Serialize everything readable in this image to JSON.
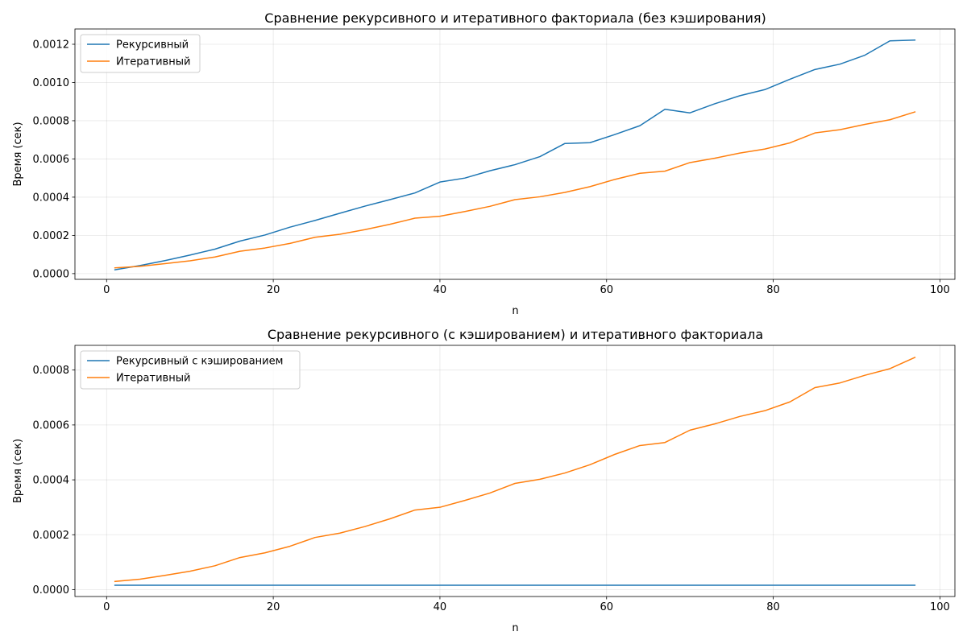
{
  "colors": {
    "series1": "#1f77b4",
    "series2": "#ff7f0e",
    "grid": "#b0b0b0",
    "axis": "#000000"
  },
  "chart_data": [
    {
      "type": "line",
      "title": "Сравнение рекурсивного и итеративного факториала (без кэширования)",
      "xlabel": "n",
      "ylabel": "Время (сек)",
      "xlim": [
        -3.8,
        101.8
      ],
      "ylim": [
        -3e-05,
        0.00128
      ],
      "xticks": [
        0,
        20,
        40,
        60,
        80,
        100
      ],
      "xtick_labels": [
        "0",
        "20",
        "40",
        "60",
        "80",
        "100"
      ],
      "yticks": [
        0.0,
        0.0002,
        0.0004,
        0.0006,
        0.0008,
        0.001,
        0.0012
      ],
      "ytick_labels": [
        "0.0000",
        "0.0002",
        "0.0004",
        "0.0006",
        "0.0008",
        "0.0010",
        "0.0012"
      ],
      "grid": true,
      "legend_position": "top-left",
      "x": [
        1,
        4,
        7,
        10,
        13,
        16,
        19,
        22,
        25,
        28,
        31,
        34,
        37,
        40,
        43,
        46,
        49,
        52,
        55,
        58,
        61,
        64,
        67,
        70,
        73,
        76,
        79,
        82,
        85,
        88,
        91,
        94,
        97
      ],
      "series": [
        {
          "name": "Рекурсивный",
          "color": "#1f77b4",
          "values": [
            2e-05,
            4.2e-05,
            6.8e-05,
            9.7e-05,
            0.000128,
            0.00017,
            0.000202,
            0.000243,
            0.000278,
            0.000316,
            0.000353,
            0.000387,
            0.000422,
            0.000479,
            0.0005,
            0.000538,
            0.00057,
            0.000612,
            0.000681,
            0.000685,
            0.000728,
            0.000774,
            0.00086,
            0.000841,
            0.000889,
            0.000931,
            0.000963,
            0.001017,
            0.001068,
            0.001096,
            0.001143,
            0.001218,
            0.001222
          ]
        },
        {
          "name": "Итеративный",
          "color": "#ff7f0e",
          "values": [
            3e-05,
            3.8e-05,
            5.2e-05,
            6.7e-05,
            8.7e-05,
            0.000117,
            0.000134,
            0.000158,
            0.00019,
            0.000206,
            0.00023,
            0.000258,
            0.00029,
            0.0003,
            0.000325,
            0.000352,
            0.000387,
            0.000402,
            0.000425,
            0.000455,
            0.000493,
            0.000525,
            0.000536,
            0.000581,
            0.000604,
            0.000631,
            0.000652,
            0.000684,
            0.000736,
            0.000753,
            0.000781,
            0.000805,
            0.000846
          ]
        }
      ]
    },
    {
      "type": "line",
      "title": "Сравнение рекурсивного (с кэшированием) и итеративного факториала",
      "xlabel": "n",
      "ylabel": "Время (сек)",
      "xlim": [
        -3.8,
        101.8
      ],
      "ylim": [
        -2.5e-05,
        0.00089
      ],
      "xticks": [
        0,
        20,
        40,
        60,
        80,
        100
      ],
      "xtick_labels": [
        "0",
        "20",
        "40",
        "60",
        "80",
        "100"
      ],
      "yticks": [
        0.0,
        0.0002,
        0.0004,
        0.0006,
        0.0008
      ],
      "ytick_labels": [
        "0.0000",
        "0.0002",
        "0.0004",
        "0.0006",
        "0.0008"
      ],
      "grid": true,
      "legend_position": "top-left",
      "x": [
        1,
        4,
        7,
        10,
        13,
        16,
        19,
        22,
        25,
        28,
        31,
        34,
        37,
        40,
        43,
        46,
        49,
        52,
        55,
        58,
        61,
        64,
        67,
        70,
        73,
        76,
        79,
        82,
        85,
        88,
        91,
        94,
        97
      ],
      "series": [
        {
          "name": "Рекурсивный с кэшированием",
          "color": "#1f77b4",
          "values": [
            1.6e-05,
            1.6e-05,
            1.6e-05,
            1.6e-05,
            1.6e-05,
            1.6e-05,
            1.6e-05,
            1.6e-05,
            1.6e-05,
            1.6e-05,
            1.6e-05,
            1.6e-05,
            1.6e-05,
            1.6e-05,
            1.6e-05,
            1.6e-05,
            1.6e-05,
            1.6e-05,
            1.6e-05,
            1.6e-05,
            1.6e-05,
            1.6e-05,
            1.6e-05,
            1.6e-05,
            1.6e-05,
            1.6e-05,
            1.6e-05,
            1.6e-05,
            1.6e-05,
            1.6e-05,
            1.6e-05,
            1.6e-05,
            1.6e-05
          ]
        },
        {
          "name": "Итеративный",
          "color": "#ff7f0e",
          "values": [
            3e-05,
            3.8e-05,
            5.2e-05,
            6.7e-05,
            8.7e-05,
            0.000117,
            0.000134,
            0.000158,
            0.00019,
            0.000206,
            0.00023,
            0.000258,
            0.00029,
            0.0003,
            0.000325,
            0.000352,
            0.000387,
            0.000402,
            0.000425,
            0.000455,
            0.000493,
            0.000525,
            0.000536,
            0.000581,
            0.000604,
            0.000631,
            0.000652,
            0.000684,
            0.000736,
            0.000753,
            0.000781,
            0.000805,
            0.000846
          ]
        }
      ]
    }
  ]
}
